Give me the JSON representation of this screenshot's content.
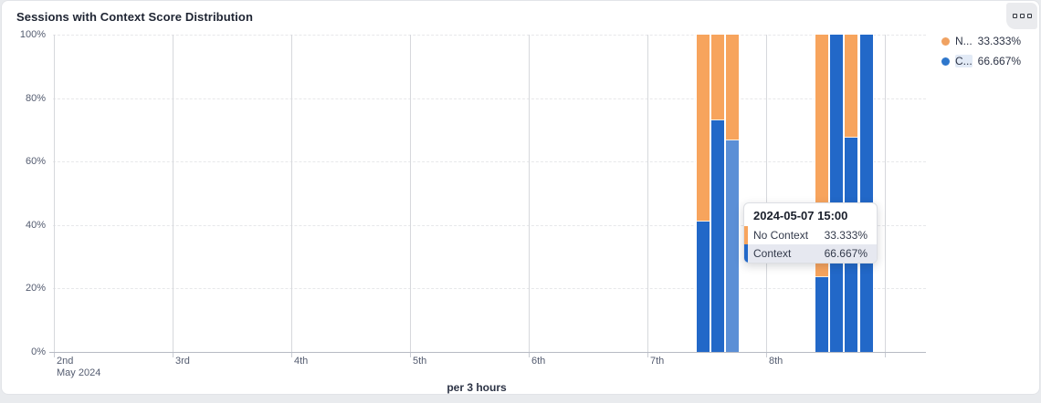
{
  "card": {
    "title": "Sessions with Context Score Distribution"
  },
  "colors": {
    "context": "#2268c8",
    "context_hover": "#5b8fd6",
    "no_context": "#f7a45d"
  },
  "chart_data": {
    "type": "bar",
    "stacking": "percent",
    "title": "Sessions with Context Score Distribution",
    "xlabel": "per 3 hours",
    "ylabel": "",
    "ylim": [
      0,
      100
    ],
    "grid": true,
    "legend_position": "top-right",
    "y_axis": {
      "tick_labels": [
        "0%",
        "20%",
        "40%",
        "60%",
        "80%",
        "100%"
      ]
    },
    "x_axis": {
      "tick_labels": [
        "2nd",
        "3rd",
        "4th",
        "5th",
        "6th",
        "7th",
        "8th"
      ],
      "month_label": "May 2024"
    },
    "series": [
      {
        "name": "Context",
        "color": "#2268c8"
      },
      {
        "name": "No Context",
        "color": "#f7a45d"
      }
    ],
    "bars": [
      {
        "time": "2024-05-07 09:00",
        "context_pct": 41,
        "no_context_pct": 59,
        "highlighted": false
      },
      {
        "time": "2024-05-07 12:00",
        "context_pct": 73,
        "no_context_pct": 27,
        "highlighted": false
      },
      {
        "time": "2024-05-07 15:00",
        "context_pct": 66.667,
        "no_context_pct": 33.333,
        "highlighted": true
      },
      {
        "time": "2024-05-08 09:00",
        "context_pct": 23.5,
        "no_context_pct": 76.5,
        "highlighted": false
      },
      {
        "time": "2024-05-08 12:00",
        "context_pct": 100,
        "no_context_pct": 0,
        "highlighted": false
      },
      {
        "time": "2024-05-08 15:00",
        "context_pct": 67.5,
        "no_context_pct": 32.5,
        "highlighted": false
      },
      {
        "time": "2024-05-08 18:00",
        "context_pct": 100,
        "no_context_pct": 0,
        "highlighted": false
      }
    ]
  },
  "legend": {
    "items": [
      {
        "name": "N...",
        "pct": "33.333%",
        "color": "#f0a262",
        "highlighted": false
      },
      {
        "name": "C...",
        "pct": "66.667%",
        "color": "#2e77cc",
        "highlighted": true
      }
    ]
  },
  "tooltip": {
    "title": "2024-05-07 15:00",
    "rows": [
      {
        "label": "No Context",
        "value": "33.333%",
        "color": "#f7a45d",
        "highlighted": false
      },
      {
        "label": "Context",
        "value": "66.667%",
        "color": "#2268c8",
        "highlighted": true
      }
    ]
  }
}
